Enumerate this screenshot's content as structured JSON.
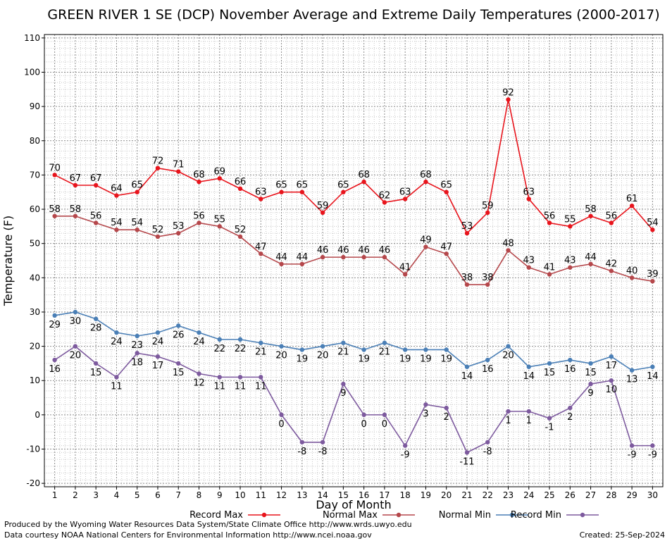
{
  "chart_data": {
    "type": "line",
    "title": "GREEN RIVER 1 SE (DCP) November Average and Extreme Daily Temperatures (2000-2017)",
    "xlabel": "Day of Month",
    "ylabel": "Temperature (F)",
    "xlim": [
      0.5,
      30.5
    ],
    "ylim": [
      -21,
      111
    ],
    "x_ticks": [
      1,
      2,
      3,
      4,
      5,
      6,
      7,
      8,
      9,
      10,
      11,
      12,
      13,
      14,
      15,
      16,
      17,
      18,
      19,
      20,
      21,
      22,
      23,
      24,
      25,
      26,
      27,
      28,
      29,
      30
    ],
    "y_ticks": [
      -20,
      -10,
      0,
      10,
      20,
      30,
      40,
      50,
      60,
      70,
      80,
      90,
      100,
      110
    ],
    "grid": true,
    "legend_position": "bottom",
    "series": [
      {
        "name": "Record Max",
        "color": "#e8141c",
        "label_position": "above",
        "values": [
          70,
          67,
          67,
          64,
          65,
          72,
          71,
          68,
          69,
          66,
          63,
          65,
          65,
          59,
          65,
          68,
          62,
          63,
          68,
          65,
          53,
          59,
          92,
          63,
          56,
          55,
          58,
          56,
          61,
          54
        ]
      },
      {
        "name": "Normal Max",
        "color": "#b5474b",
        "label_position": "above",
        "values": [
          58,
          58,
          56,
          54,
          54,
          52,
          53,
          56,
          55,
          52,
          47,
          44,
          44,
          46,
          46,
          46,
          46,
          41,
          49,
          47,
          38,
          38,
          48,
          43,
          41,
          43,
          44,
          42,
          40,
          39
        ]
      },
      {
        "name": "Normal Min",
        "color": "#4a7fb6",
        "label_position": "below",
        "values": [
          29,
          30,
          28,
          24,
          23,
          24,
          26,
          24,
          22,
          22,
          21,
          20,
          19,
          20,
          21,
          19,
          21,
          19,
          19,
          19,
          14,
          16,
          20,
          14,
          15,
          16,
          15,
          17,
          13,
          14
        ]
      },
      {
        "name": "Record Min",
        "color": "#7d5a9e",
        "label_position": "below",
        "values": [
          16,
          20,
          15,
          11,
          18,
          17,
          15,
          12,
          11,
          11,
          11,
          0,
          -8,
          -8,
          9,
          0,
          0,
          -9,
          3,
          2,
          -11,
          -8,
          1,
          1,
          -1,
          2,
          9,
          10,
          -9,
          -9
        ]
      }
    ]
  },
  "footer": {
    "line1": "Produced by the Wyoming Water Resources Data System/State Climate Office http://www.wrds.uwyo.edu",
    "line2": "Data courtesy NOAA National Centers for Environmental Information http://www.ncei.noaa.gov",
    "created": "Created:  25-Sep-2024"
  }
}
